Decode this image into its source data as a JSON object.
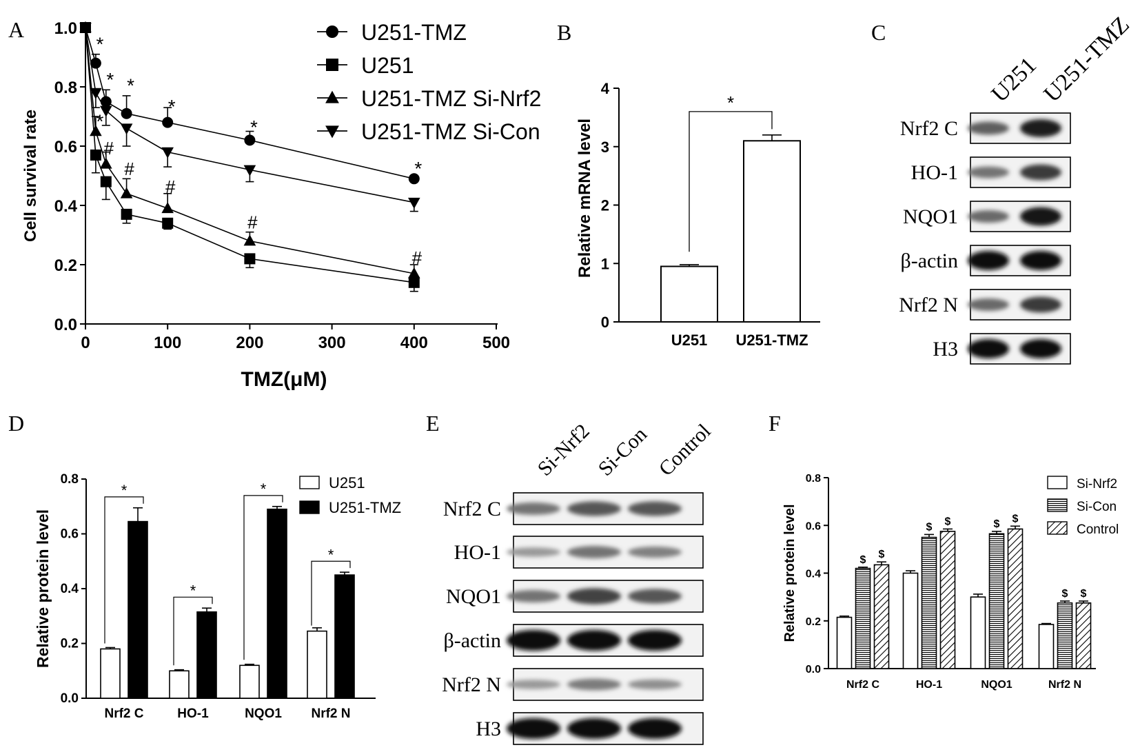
{
  "panels": {
    "A": {
      "letter": "A"
    },
    "B": {
      "letter": "B"
    },
    "C": {
      "letter": "C"
    },
    "D": {
      "letter": "D"
    },
    "E": {
      "letter": "E"
    },
    "F": {
      "letter": "F"
    }
  },
  "colors": {
    "ink": "#000000",
    "background": "#ffffff"
  },
  "chart_data": [
    {
      "panel": "A",
      "type": "line",
      "xlabel": "TMZ(μM)",
      "ylabel": "Cell survival rate",
      "xlim": [
        0,
        500
      ],
      "ylim": [
        0,
        1.0
      ],
      "xticks": [
        "0",
        "100",
        "200",
        "300",
        "400",
        "500"
      ],
      "yticks": [
        "0.0",
        "0.2",
        "0.4",
        "0.6",
        "0.8",
        "1.0"
      ],
      "x": [
        0,
        12.5,
        25,
        50,
        100,
        200,
        400
      ],
      "series": [
        {
          "name": "U251-TMZ",
          "marker": "circle",
          "values": [
            1.0,
            0.88,
            0.75,
            0.71,
            0.68,
            0.62,
            0.49
          ],
          "errors": [
            0,
            0.03,
            0.04,
            0.06,
            0.05,
            0.03,
            0.01
          ]
        },
        {
          "name": "U251",
          "marker": "square",
          "values": [
            1.0,
            0.57,
            0.48,
            0.37,
            0.34,
            0.22,
            0.14
          ],
          "errors": [
            0,
            0.06,
            0.06,
            0.03,
            0.02,
            0.03,
            0.03
          ]
        },
        {
          "name": "U251-TMZ Si-Nrf2",
          "marker": "triangle-up",
          "values": [
            1.0,
            0.65,
            0.54,
            0.44,
            0.39,
            0.28,
            0.17
          ],
          "errors": [
            0,
            0.05,
            0.04,
            0.05,
            0.05,
            0.03,
            0.03
          ]
        },
        {
          "name": "U251-TMZ Si-Con",
          "marker": "triangle-down",
          "values": [
            1.0,
            0.78,
            0.72,
            0.66,
            0.58,
            0.52,
            0.41
          ],
          "errors": [
            0,
            0.05,
            0.05,
            0.06,
            0.05,
            0.04,
            0.03
          ]
        }
      ],
      "annotations": {
        "star_symbol": "*",
        "hash_symbol": "#",
        "star": [
          {
            "x": 12.5,
            "y": 0.95
          },
          {
            "x": 25,
            "y": 0.83
          },
          {
            "x": 50,
            "y": 0.81
          },
          {
            "x": 100,
            "y": 0.74
          },
          {
            "x": 200,
            "y": 0.67
          },
          {
            "x": 400,
            "y": 0.53
          },
          {
            "x": 12.5,
            "y": 0.69
          }
        ],
        "hash": [
          {
            "x": 25,
            "y": 0.6
          },
          {
            "x": 50,
            "y": 0.53
          },
          {
            "x": 100,
            "y": 0.47
          },
          {
            "x": 200,
            "y": 0.35
          },
          {
            "x": 400,
            "y": 0.23
          }
        ]
      },
      "legend_position": "top-right outside"
    },
    {
      "panel": "B",
      "type": "bar",
      "ylabel": "Relative mRNA level",
      "categories": [
        "U251",
        "U251-TMZ"
      ],
      "values": [
        0.95,
        3.1
      ],
      "errors": [
        0.03,
        0.1
      ],
      "ylim": [
        0,
        4
      ],
      "yticks": [
        "0",
        "1",
        "2",
        "3",
        "4"
      ],
      "significance": "*"
    },
    {
      "panel": "C",
      "type": "blot",
      "lanes": [
        "U251",
        "U251-TMZ"
      ],
      "rows": [
        "Nrf2 C",
        "HO-1",
        "NQO1",
        "β-actin",
        "Nrf2 N",
        "H3"
      ],
      "intensities": [
        [
          0.55,
          0.9
        ],
        [
          0.45,
          0.75
        ],
        [
          0.5,
          0.95
        ],
        [
          1.0,
          1.0
        ],
        [
          0.5,
          0.75
        ],
        [
          1.0,
          1.0
        ]
      ]
    },
    {
      "panel": "D",
      "type": "bar",
      "ylabel": "Relative protein level",
      "categories": [
        "Nrf2 C",
        "HO-1",
        "NQO1",
        "Nrf2 N"
      ],
      "series": [
        {
          "name": "U251",
          "fill": "white",
          "values": [
            0.18,
            0.1,
            0.12,
            0.245
          ],
          "errors": [
            0.005,
            0.004,
            0.004,
            0.012
          ]
        },
        {
          "name": "U251-TMZ",
          "fill": "black",
          "values": [
            0.645,
            0.315,
            0.69,
            0.45
          ],
          "errors": [
            0.05,
            0.014,
            0.01,
            0.01
          ]
        }
      ],
      "ylim": [
        0,
        0.8
      ],
      "yticks": [
        "0.0",
        "0.2",
        "0.4",
        "0.6",
        "0.8"
      ],
      "significance": "*"
    },
    {
      "panel": "E",
      "type": "blot",
      "lanes": [
        "Si-Nrf2",
        "Si-Con",
        "Control"
      ],
      "rows": [
        "Nrf2 C",
        "HO-1",
        "NQO1",
        "β-actin",
        "Nrf2 N",
        "H3"
      ],
      "intensities": [
        [
          0.45,
          0.6,
          0.6
        ],
        [
          0.25,
          0.45,
          0.38
        ],
        [
          0.45,
          0.7,
          0.6
        ],
        [
          1.0,
          1.0,
          1.0
        ],
        [
          0.25,
          0.4,
          0.3
        ],
        [
          1.0,
          1.0,
          1.0
        ]
      ]
    },
    {
      "panel": "F",
      "type": "bar",
      "ylabel": "Relative protein level",
      "categories": [
        "Nrf2 C",
        "HO-1",
        "NQO1",
        "Nrf2 N"
      ],
      "series": [
        {
          "name": "Si-Nrf2",
          "fill": "white",
          "values": [
            0.215,
            0.4,
            0.3,
            0.185
          ],
          "errors": [
            0.005,
            0.01,
            0.012,
            0.004
          ]
        },
        {
          "name": "Si-Con",
          "fill": "horizontal-stripes",
          "values": [
            0.42,
            0.55,
            0.565,
            0.275
          ],
          "errors": [
            0.005,
            0.012,
            0.01,
            0.008
          ]
        },
        {
          "name": "Control",
          "fill": "diagonal-stripes",
          "values": [
            0.435,
            0.575,
            0.585,
            0.275
          ],
          "errors": [
            0.012,
            0.01,
            0.012,
            0.008
          ]
        }
      ],
      "ylim": [
        0,
        0.8
      ],
      "yticks": [
        "0.0",
        "0.2",
        "0.4",
        "0.6",
        "0.8"
      ],
      "significance": "$"
    }
  ]
}
